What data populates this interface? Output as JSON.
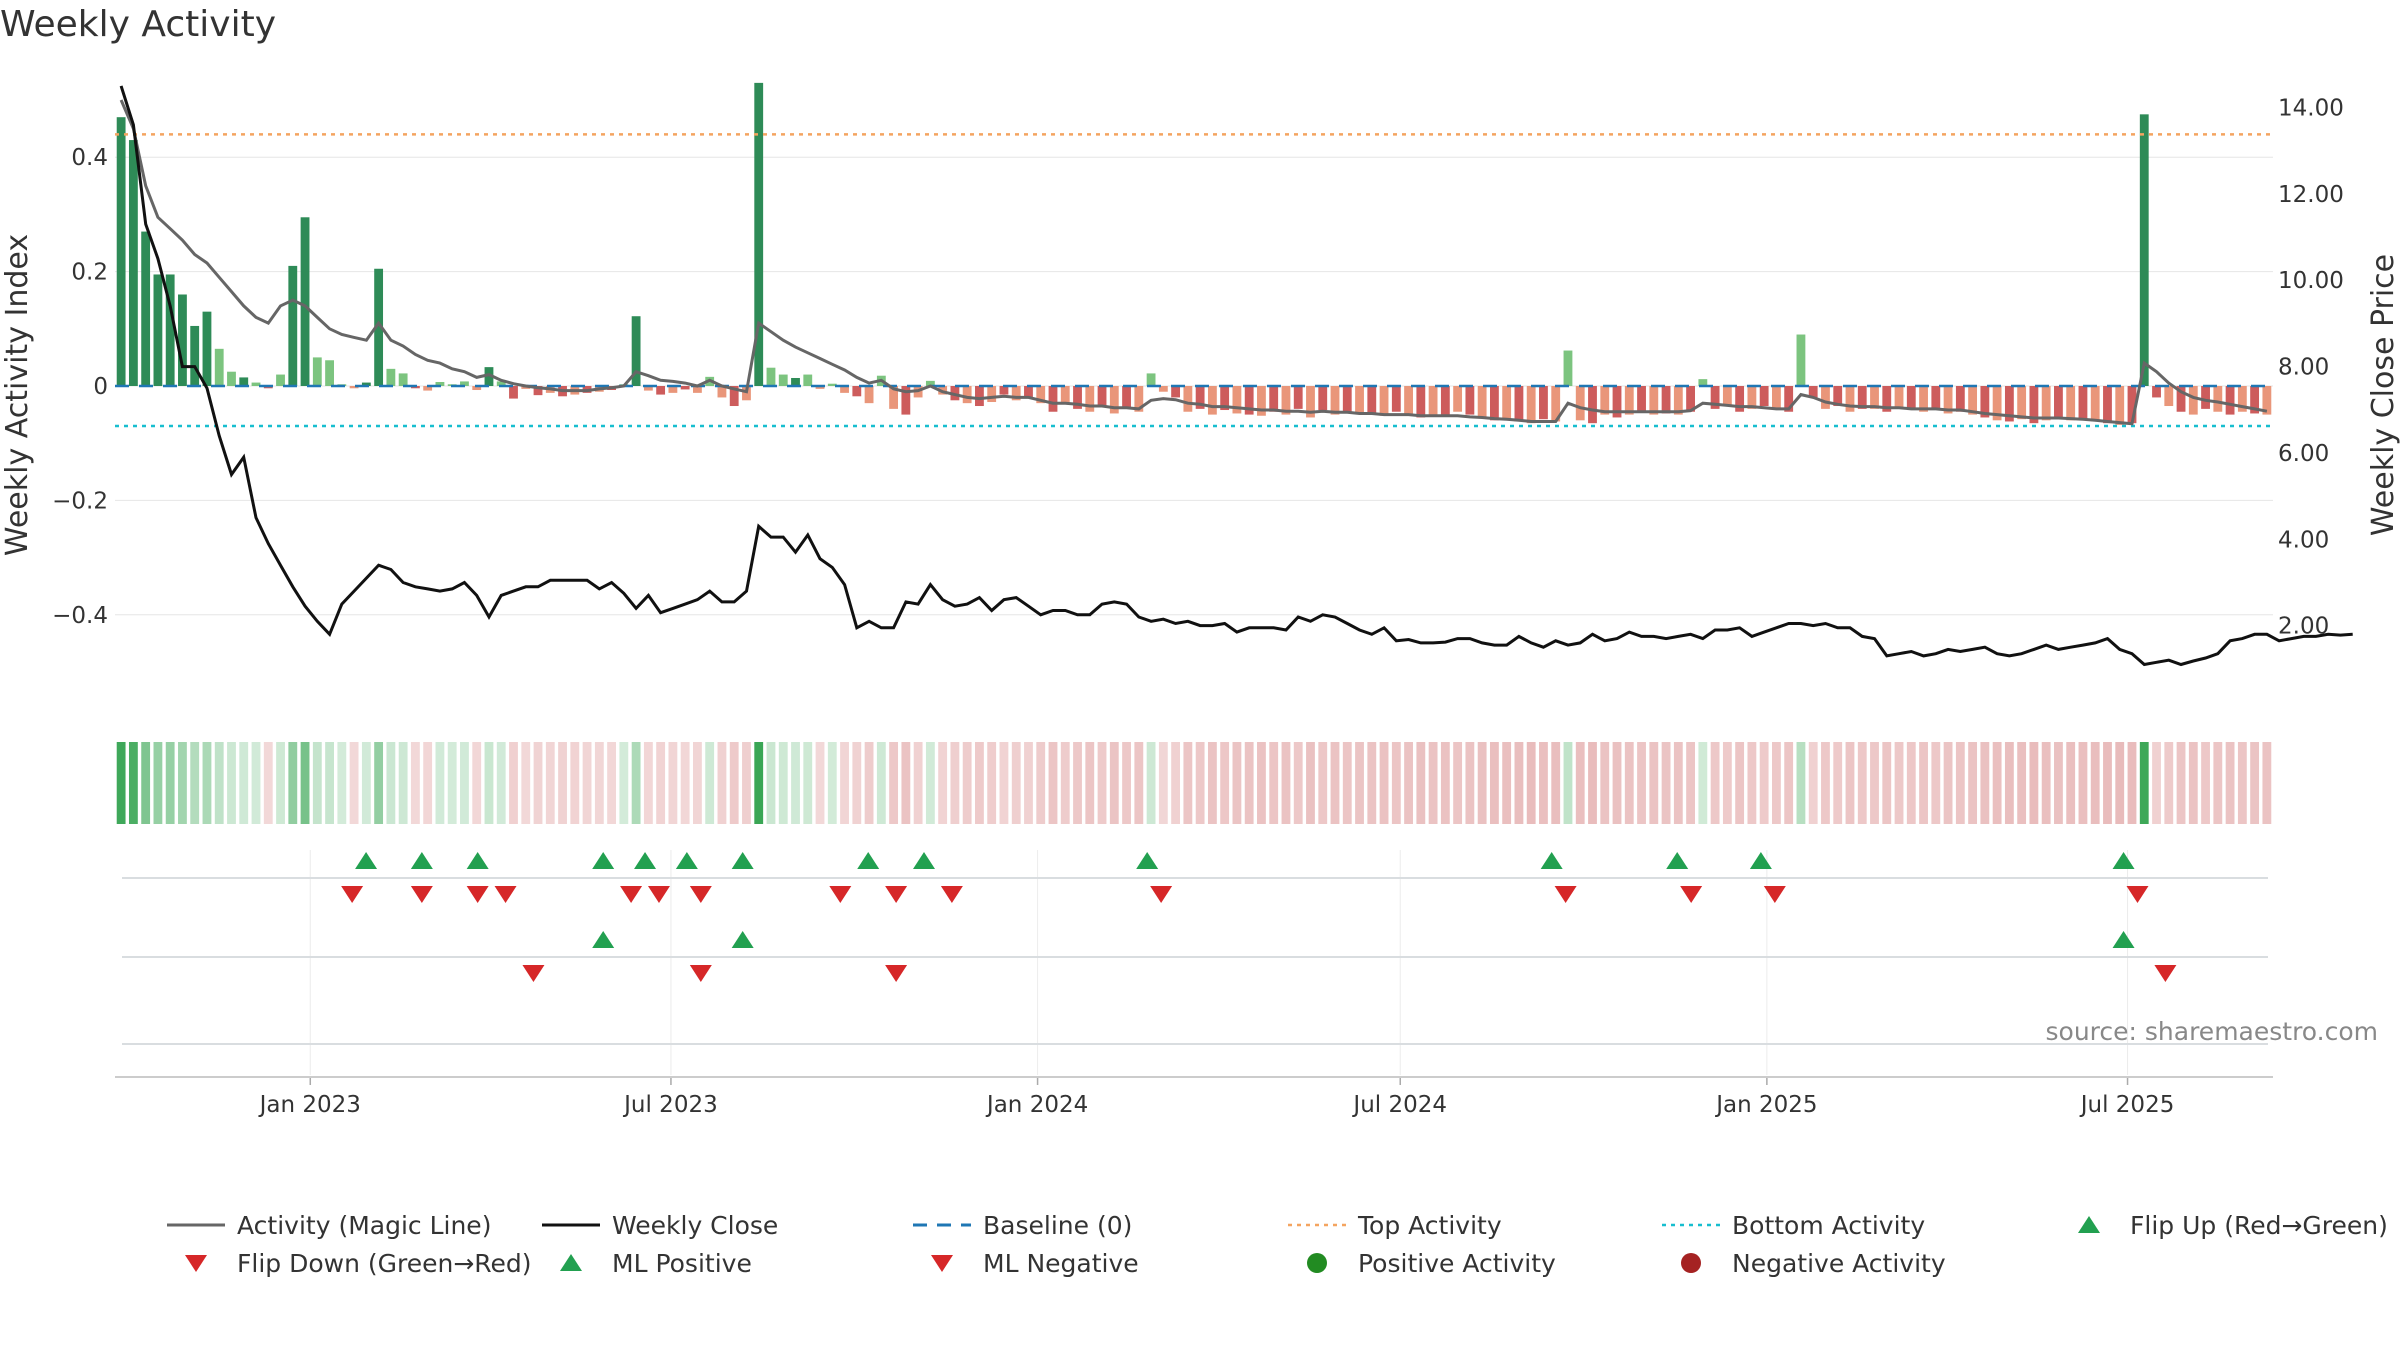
{
  "title": "Weekly Activity",
  "source": "source: sharemaestro.com",
  "colors": {
    "strong_green": "#2e8b57",
    "light_green": "#7cc47f",
    "strong_red": "#cd5c5c",
    "light_red": "#e9967a",
    "magic_line": "#666666",
    "close_line": "#111111",
    "baseline": "#1f77b4",
    "top": "#f4a460",
    "bottom": "#17becf",
    "marker_green": "#22a050",
    "marker_red": "#d62728",
    "dot_green": "#228b22",
    "dot_red": "#a52222"
  },
  "chart_data": {
    "type": "bar",
    "title": "Weekly Activity",
    "ylabel_left": "Weekly Activity Index",
    "ylabel_right": "Weekly Close Price",
    "ylim_left": [
      -0.57,
      0.57
    ],
    "ylim_right": [
      0,
      15.1
    ],
    "yticks_left": [
      "−0.4",
      "−0.2",
      "0",
      "0.2",
      "0.4"
    ],
    "yticks_left_values": [
      -0.4,
      -0.2,
      0,
      0.2,
      0.4
    ],
    "yticks_right": [
      "2.00",
      "4.00",
      "6.00",
      "8.00",
      "10.00",
      "12.00",
      "14.00"
    ],
    "yticks_right_values": [
      2,
      4,
      6,
      8,
      10,
      12,
      14
    ],
    "x_tick_labels": [
      "Jan 2023",
      "Jul 2023",
      "Jan 2024",
      "Jul 2024",
      "Jan 2025",
      "Jul 2025"
    ],
    "x_tick_dates": [
      "2023-01-01",
      "2023-07-01",
      "2024-01-01",
      "2024-07-01",
      "2025-01-01",
      "2025-07-01"
    ],
    "x_range": [
      "2022-09-25",
      "2025-09-12"
    ],
    "top_activity": 0.44,
    "bottom_activity": -0.07,
    "grid": true,
    "activity": [
      0.47,
      0.43,
      0.27,
      0.195,
      0.195,
      0.16,
      0.105,
      0.13,
      0.065,
      0.025,
      0.015,
      0.006,
      -0.004,
      0.02,
      0.21,
      0.295,
      0.05,
      0.045,
      0.003,
      -0.004,
      0.006,
      0.205,
      0.03,
      0.022,
      -0.004,
      -0.008,
      0.007,
      0.003,
      0.008,
      -0.007,
      0.033,
      0.008,
      -0.022,
      -0.005,
      -0.016,
      -0.012,
      -0.018,
      -0.015,
      -0.012,
      -0.01,
      -0.007,
      0.003,
      0.122,
      -0.008,
      -0.015,
      -0.012,
      -0.006,
      -0.012,
      0.016,
      -0.02,
      -0.035,
      -0.025,
      0.53,
      0.032,
      0.02,
      0.014,
      0.02,
      -0.005,
      0.004,
      -0.012,
      -0.018,
      -0.03,
      0.018,
      -0.04,
      -0.05,
      -0.02,
      0.009,
      -0.015,
      -0.025,
      -0.03,
      -0.035,
      -0.028,
      -0.015,
      -0.025,
      -0.02,
      -0.03,
      -0.045,
      -0.03,
      -0.04,
      -0.045,
      -0.035,
      -0.048,
      -0.04,
      -0.045,
      0.022,
      -0.01,
      -0.02,
      -0.045,
      -0.04,
      -0.05,
      -0.042,
      -0.048,
      -0.05,
      -0.052,
      -0.045,
      -0.05,
      -0.04,
      -0.055,
      -0.042,
      -0.05,
      -0.045,
      -0.048,
      -0.05,
      -0.052,
      -0.045,
      -0.05,
      -0.055,
      -0.05,
      -0.052,
      -0.045,
      -0.05,
      -0.055,
      -0.06,
      -0.058,
      -0.062,
      -0.065,
      -0.058,
      -0.062,
      0.062,
      -0.06,
      -0.065,
      -0.05,
      -0.055,
      -0.05,
      -0.045,
      -0.05,
      -0.048,
      -0.05,
      -0.045,
      0.012,
      -0.04,
      -0.035,
      -0.045,
      -0.04,
      -0.035,
      -0.04,
      -0.045,
      0.09,
      -0.02,
      -0.04,
      -0.035,
      -0.045,
      -0.04,
      -0.04,
      -0.045,
      -0.04,
      -0.042,
      -0.045,
      -0.04,
      -0.048,
      -0.045,
      -0.05,
      -0.055,
      -0.06,
      -0.062,
      -0.058,
      -0.065,
      -0.06,
      -0.055,
      -0.06,
      -0.058,
      -0.062,
      -0.065,
      -0.068,
      -0.065,
      0.475,
      -0.02,
      -0.035,
      -0.045,
      -0.05,
      -0.04,
      -0.045,
      -0.05,
      -0.045,
      -0.048,
      -0.05
    ],
    "magic_line": [
      0.5,
      0.45,
      0.35,
      0.295,
      0.275,
      0.255,
      0.23,
      0.215,
      0.19,
      0.165,
      0.14,
      0.12,
      0.11,
      0.14,
      0.15,
      0.14,
      0.12,
      0.1,
      0.09,
      0.085,
      0.08,
      0.11,
      0.08,
      0.07,
      0.055,
      0.045,
      0.04,
      0.03,
      0.025,
      0.015,
      0.02,
      0.01,
      0.004,
      0.0,
      -0.003,
      -0.005,
      -0.008,
      -0.008,
      -0.008,
      -0.005,
      -0.003,
      0.0,
      0.025,
      0.018,
      0.01,
      0.008,
      0.005,
      0.0,
      0.01,
      0.0,
      -0.005,
      -0.01,
      0.11,
      0.095,
      0.08,
      0.068,
      0.058,
      0.048,
      0.038,
      0.028,
      0.015,
      0.005,
      0.01,
      -0.005,
      -0.01,
      -0.008,
      0.0,
      -0.01,
      -0.015,
      -0.02,
      -0.022,
      -0.02,
      -0.018,
      -0.02,
      -0.02,
      -0.025,
      -0.03,
      -0.03,
      -0.032,
      -0.035,
      -0.035,
      -0.038,
      -0.038,
      -0.04,
      -0.025,
      -0.022,
      -0.024,
      -0.03,
      -0.032,
      -0.036,
      -0.036,
      -0.038,
      -0.04,
      -0.042,
      -0.042,
      -0.044,
      -0.044,
      -0.046,
      -0.044,
      -0.046,
      -0.046,
      -0.048,
      -0.048,
      -0.05,
      -0.05,
      -0.05,
      -0.052,
      -0.052,
      -0.052,
      -0.052,
      -0.054,
      -0.055,
      -0.057,
      -0.058,
      -0.06,
      -0.062,
      -0.062,
      -0.062,
      -0.03,
      -0.038,
      -0.042,
      -0.045,
      -0.045,
      -0.045,
      -0.045,
      -0.045,
      -0.045,
      -0.045,
      -0.043,
      -0.03,
      -0.032,
      -0.034,
      -0.036,
      -0.036,
      -0.038,
      -0.04,
      -0.04,
      -0.015,
      -0.02,
      -0.028,
      -0.032,
      -0.035,
      -0.036,
      -0.036,
      -0.038,
      -0.038,
      -0.04,
      -0.04,
      -0.04,
      -0.042,
      -0.042,
      -0.045,
      -0.048,
      -0.05,
      -0.052,
      -0.054,
      -0.056,
      -0.056,
      -0.056,
      -0.057,
      -0.058,
      -0.06,
      -0.062,
      -0.064,
      -0.066,
      0.04,
      0.025,
      0.005,
      -0.01,
      -0.02,
      -0.025,
      -0.028,
      -0.032,
      -0.036,
      -0.04,
      -0.044
    ],
    "weekly_close": [
      14.5,
      13.6,
      11.3,
      10.5,
      9.4,
      8.0,
      8.0,
      7.5,
      6.4,
      5.5,
      5.9,
      4.5,
      3.9,
      3.4,
      2.9,
      2.45,
      2.1,
      1.8,
      2.5,
      2.8,
      3.1,
      3.4,
      3.3,
      3.0,
      2.9,
      2.85,
      2.8,
      2.85,
      3.0,
      2.7,
      2.2,
      2.7,
      2.8,
      2.9,
      2.9,
      3.05,
      3.05,
      3.05,
      3.05,
      2.85,
      3.0,
      2.75,
      2.4,
      2.7,
      2.3,
      2.4,
      2.5,
      2.6,
      2.8,
      2.55,
      2.55,
      2.8,
      4.3,
      4.05,
      4.05,
      3.7,
      4.1,
      3.55,
      3.35,
      2.95,
      1.95,
      2.1,
      1.95,
      1.95,
      2.55,
      2.5,
      2.95,
      2.6,
      2.45,
      2.5,
      2.65,
      2.35,
      2.6,
      2.65,
      2.45,
      2.25,
      2.35,
      2.35,
      2.25,
      2.25,
      2.5,
      2.55,
      2.5,
      2.2,
      2.1,
      2.15,
      2.05,
      2.1,
      2.0,
      2.0,
      2.05,
      1.85,
      1.95,
      1.95,
      1.95,
      1.9,
      2.2,
      2.1,
      2.25,
      2.2,
      2.05,
      1.9,
      1.8,
      1.95,
      1.65,
      1.68,
      1.6,
      1.6,
      1.62,
      1.7,
      1.7,
      1.6,
      1.55,
      1.55,
      1.75,
      1.6,
      1.5,
      1.65,
      1.55,
      1.6,
      1.8,
      1.65,
      1.7,
      1.85,
      1.75,
      1.75,
      1.7,
      1.75,
      1.8,
      1.7,
      1.9,
      1.9,
      1.95,
      1.75,
      1.85,
      1.95,
      2.05,
      2.05,
      2.0,
      2.05,
      1.95,
      1.95,
      1.75,
      1.7,
      1.3,
      1.35,
      1.4,
      1.3,
      1.35,
      1.45,
      1.4,
      1.45,
      1.5,
      1.35,
      1.3,
      1.35,
      1.45,
      1.55,
      1.45,
      1.5,
      1.55,
      1.6,
      1.7,
      1.45,
      1.35,
      1.1,
      1.15,
      1.2,
      1.1,
      1.18,
      1.25,
      1.35,
      1.65,
      1.7,
      1.8,
      1.8,
      1.65,
      1.7,
      1.75,
      1.75,
      1.8,
      1.78,
      1.8
    ]
  },
  "flip_rows": [
    {
      "up": [
        "2023-01-29",
        "2023-02-26",
        "2023-03-26",
        "2023-05-28",
        "2023-06-18",
        "2023-07-09",
        "2023-08-06",
        "2023-10-08",
        "2023-11-05",
        "2024-02-25",
        "2024-09-15",
        "2024-11-17",
        "2024-12-29",
        "2025-06-29"
      ],
      "down": [
        "2023-01-22",
        "2023-02-26",
        "2023-03-26",
        "2023-04-09",
        "2023-06-11",
        "2023-06-25",
        "2023-07-16",
        "2023-09-24",
        "2023-10-22",
        "2023-11-19",
        "2024-03-03",
        "2024-09-22",
        "2024-11-24",
        "2025-01-05",
        "2025-07-06"
      ]
    },
    {
      "up": [
        "2023-05-28",
        "2023-08-06",
        "2025-06-29"
      ],
      "down": [
        "2023-04-23",
        "2023-07-16",
        "2023-10-22",
        "2025-07-20"
      ]
    },
    {
      "up": [],
      "down": []
    }
  ],
  "legend": [
    {
      "icon": "line-gray",
      "label": "Activity (Magic Line)"
    },
    {
      "icon": "line-black",
      "label": "Weekly Close"
    },
    {
      "icon": "dash-blue",
      "label": "Baseline (0)"
    },
    {
      "icon": "dot-orange",
      "label": "Top Activity"
    },
    {
      "icon": "dot-cyan",
      "label": "Bottom Activity"
    },
    {
      "icon": "triangle-up-green",
      "label": "Flip Up (Red→Green)"
    },
    {
      "icon": "triangle-down-red",
      "label": "Flip Down (Green→Red)"
    },
    {
      "icon": "triangle-up-green",
      "label": "ML Positive"
    },
    {
      "icon": "triangle-down-red",
      "label": "ML Negative"
    },
    {
      "icon": "circle-green",
      "label": "Positive Activity"
    },
    {
      "icon": "circle-red",
      "label": "Negative Activity"
    }
  ]
}
